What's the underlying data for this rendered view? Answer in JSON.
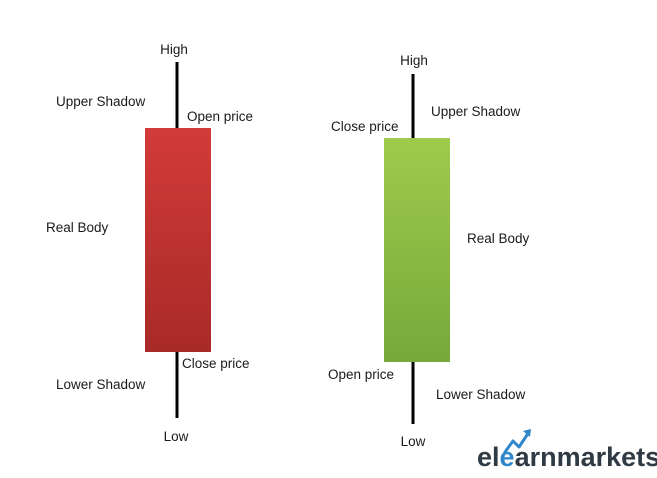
{
  "colors": {
    "bearish_top": "#d23b38",
    "bearish_bottom": "#a82a28",
    "bullish_top": "#9fcb4c",
    "bullish_bottom": "#76a83a",
    "wick": "#000000",
    "brand_dark": "#2f3a44",
    "brand_blue": "#2f86c8"
  },
  "bearish_candle": {
    "high": "High",
    "upper_shadow": "Upper Shadow",
    "open_price": "Open price",
    "real_body": "Real Body",
    "close_price": "Close price",
    "lower_shadow": "Lower Shadow",
    "low": "Low"
  },
  "bullish_candle": {
    "high": "High",
    "close_price": "Close price",
    "upper_shadow": "Upper Shadow",
    "real_body": "Real Body",
    "open_price": "Open price",
    "lower_shadow": "Lower Shadow",
    "low": "Low"
  },
  "brand": {
    "part1": "el",
    "part2": "e",
    "part3": "arnmarkets"
  }
}
